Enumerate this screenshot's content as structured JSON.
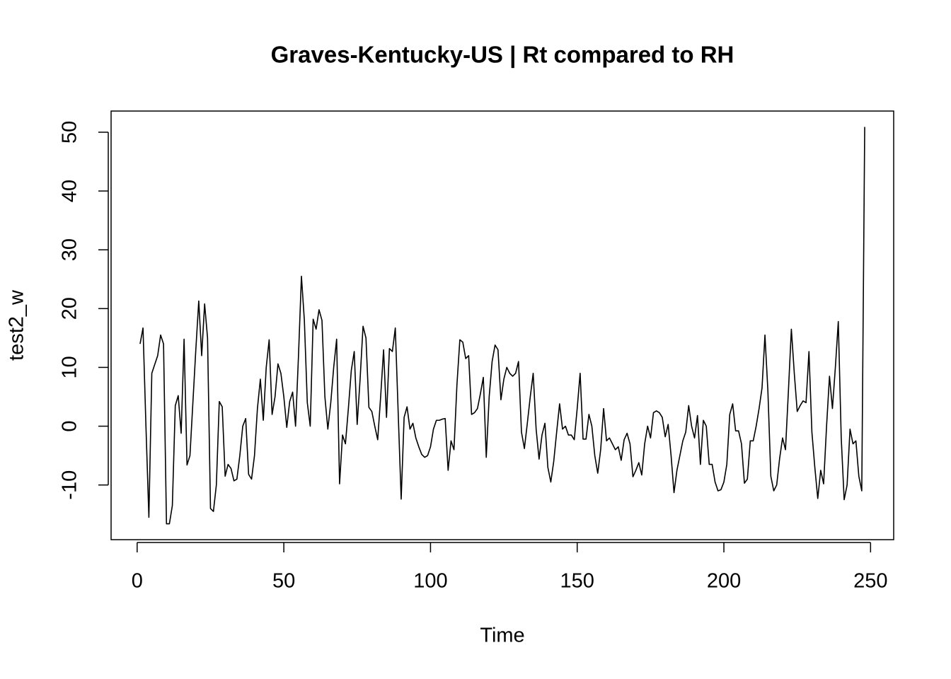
{
  "chart_data": {
    "type": "line",
    "title": "Graves-Kentucky-US | Rt compared to RH",
    "xlabel": "Time",
    "ylabel": "test2_w",
    "x": [
      1,
      2,
      3,
      4,
      5,
      6,
      7,
      8,
      9,
      10,
      11,
      12,
      13,
      14,
      15,
      16,
      17,
      18,
      19,
      20,
      21,
      22,
      23,
      24,
      25,
      26,
      27,
      28,
      29,
      30,
      31,
      32,
      33,
      34,
      35,
      36,
      37,
      38,
      39,
      40,
      41,
      42,
      43,
      44,
      45,
      46,
      47,
      48,
      49,
      50,
      51,
      52,
      53,
      54,
      55,
      56,
      57,
      58,
      59,
      60,
      61,
      62,
      63,
      64,
      65,
      66,
      67,
      68,
      69,
      70,
      71,
      72,
      73,
      74,
      75,
      76,
      77,
      78,
      79,
      80,
      81,
      82,
      83,
      84,
      85,
      86,
      87,
      88,
      89,
      90,
      91,
      92,
      93,
      94,
      95,
      96,
      97,
      98,
      99,
      100,
      101,
      102,
      103,
      104,
      105,
      106,
      107,
      108,
      109,
      110,
      111,
      112,
      113,
      114,
      115,
      116,
      117,
      118,
      119,
      120,
      121,
      122,
      123,
      124,
      125,
      126,
      127,
      128,
      129,
      130,
      131,
      132,
      133,
      134,
      135,
      136,
      137,
      138,
      139,
      140,
      141,
      142,
      143,
      144,
      145,
      146,
      147,
      148,
      149,
      150,
      151,
      152,
      153,
      154,
      155,
      156,
      157,
      158,
      159,
      160,
      161,
      162,
      163,
      164,
      165,
      166,
      167,
      168,
      169,
      170,
      171,
      172,
      173,
      174,
      175,
      176,
      177,
      178,
      179,
      180,
      181,
      182,
      183,
      184,
      185,
      186,
      187,
      188,
      189,
      190,
      191,
      192,
      193,
      194,
      195,
      196,
      197,
      198,
      199,
      200,
      201,
      202,
      203,
      204,
      205,
      206,
      207,
      208,
      209,
      210,
      211,
      212,
      213,
      214,
      215,
      216,
      217,
      218,
      219,
      220,
      221,
      222,
      223,
      224,
      225,
      226,
      227,
      228,
      229,
      230,
      231,
      232,
      233,
      234,
      235,
      236,
      237,
      238,
      239,
      240,
      241,
      242,
      243,
      244,
      245,
      246,
      247,
      248
    ],
    "series": [
      {
        "name": "test2_w",
        "color": "#000000",
        "values": [
          14,
          16.7,
          0,
          -15.5,
          9,
          10.5,
          12,
          15.5,
          14,
          -16.6,
          -16.6,
          -13.5,
          3.5,
          5.2,
          -1.2,
          14.8,
          -6.6,
          -5,
          4,
          13,
          21.3,
          12,
          20.8,
          15,
          -14,
          -14.5,
          -10,
          4.2,
          3.3,
          -8.5,
          -6.5,
          -7.2,
          -9.3,
          -9,
          -5,
          0,
          1.3,
          -8.2,
          -9,
          -5,
          3,
          8,
          1,
          10,
          14.7,
          2,
          5,
          10.6,
          9,
          5,
          -0.2,
          4.2,
          5.8,
          0,
          12,
          25.5,
          18,
          4,
          0,
          18.2,
          16.5,
          19.8,
          18,
          5,
          -0.5,
          4,
          10,
          14.8,
          -9.8,
          -1.5,
          -3,
          3,
          9.5,
          12.7,
          0.3,
          8,
          17,
          15,
          3.2,
          2.5,
          0,
          -2.3,
          5,
          13,
          1.5,
          13.2,
          12.7,
          16.7,
          2,
          -12.4,
          1.5,
          3.3,
          -0.5,
          0.5,
          -2,
          -3.5,
          -4.8,
          -5.3,
          -5,
          -3.5,
          -0.5,
          1,
          1,
          1.2,
          1.3,
          -7.5,
          -2.5,
          -4,
          7,
          14.7,
          14.3,
          11.5,
          12,
          2,
          2.3,
          3,
          5.5,
          8.3,
          -5.3,
          5,
          11,
          13.8,
          13,
          4.5,
          8,
          10,
          9,
          8.5,
          9,
          11,
          -1,
          -3.8,
          0.5,
          5,
          9,
          -0.5,
          -5.6,
          -1.5,
          0.5,
          -7,
          -9.5,
          -6,
          -1,
          3.8,
          -0.5,
          0,
          -1.5,
          -1.5,
          -2.3,
          3,
          9,
          -2.2,
          -2.2,
          2,
          0,
          -5,
          -8,
          -4,
          3,
          -2.5,
          -2,
          -3,
          -4,
          -3.5,
          -5.8,
          -2.3,
          -1.2,
          -3,
          -8.6,
          -7.5,
          -6.2,
          -8.3,
          -3,
          0,
          -2,
          2.3,
          2.6,
          2.3,
          1.5,
          -1.8,
          0.3,
          -5,
          -11.3,
          -7.5,
          -5,
          -2.5,
          -1,
          3.5,
          0,
          -2,
          1.8,
          -6.5,
          1,
          0,
          -6.5,
          -6.5,
          -9.5,
          -11,
          -10.8,
          -9.5,
          -6.5,
          2,
          3.8,
          -0.8,
          -0.8,
          -3,
          -9.7,
          -9,
          -2.5,
          -2.5,
          0,
          3,
          6.5,
          15.5,
          6,
          -8.5,
          -11,
          -10,
          -5.5,
          -2,
          -4,
          6,
          16.5,
          9,
          2.5,
          3.5,
          4.3,
          4,
          12.7,
          -1,
          -7,
          -12.3,
          -7.5,
          -9.8,
          0,
          8.5,
          3,
          10,
          17.8,
          -2,
          -12.5,
          -10,
          -0.5,
          -3,
          -2.5,
          -8.5,
          -11,
          50.9
        ]
      }
    ],
    "xlim": [
      -8.88,
      257.88
    ],
    "ylim": [
      -19.3,
      53.6
    ],
    "xticks": [
      0,
      50,
      100,
      150,
      200,
      250
    ],
    "yticks": [
      -10,
      0,
      10,
      20,
      30,
      40,
      50
    ],
    "grid": false
  }
}
